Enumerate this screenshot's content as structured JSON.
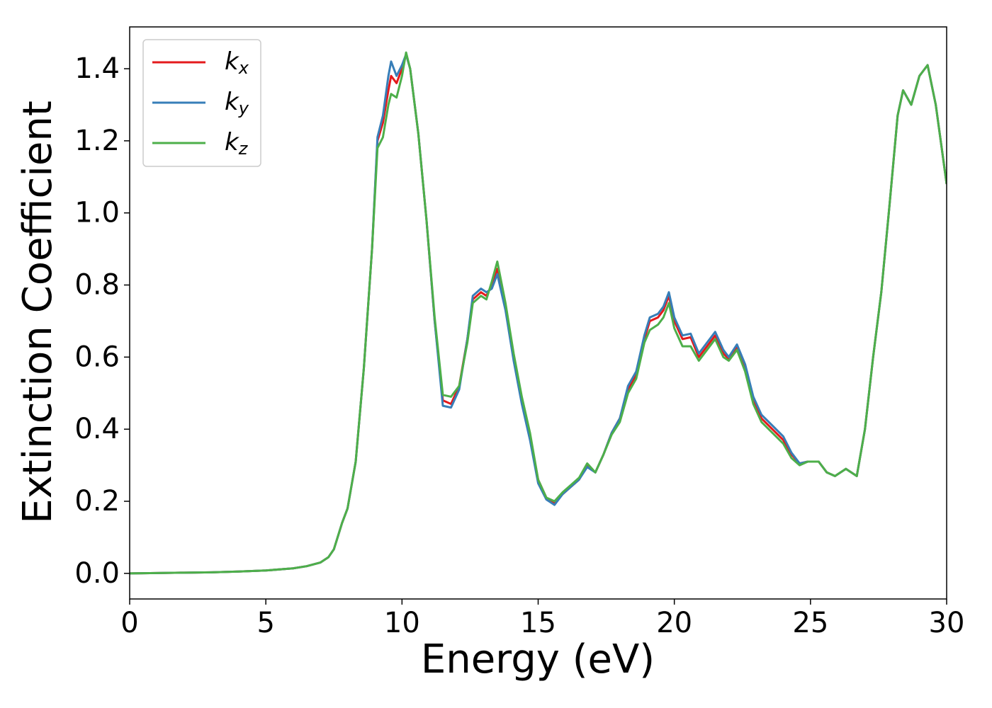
{
  "chart_data": {
    "type": "line",
    "xlabel": "Energy (eV)",
    "ylabel": "Extinction Coefficient",
    "x": [
      0,
      1,
      2,
      3,
      4,
      5,
      6,
      6.5,
      7,
      7.3,
      7.5,
      7.8,
      8,
      8.3,
      8.6,
      8.9,
      9.1,
      9.3,
      9.5,
      9.6,
      9.8,
      10,
      10.15,
      10.3,
      10.6,
      10.9,
      11.2,
      11.5,
      11.8,
      12.1,
      12.4,
      12.6,
      12.9,
      13.1,
      13.3,
      13.5,
      13.8,
      14.1,
      14.4,
      14.7,
      15,
      15.3,
      15.6,
      15.9,
      16.2,
      16.5,
      16.8,
      17.1,
      17.4,
      17.7,
      18,
      18.3,
      18.6,
      18.9,
      19.1,
      19.4,
      19.6,
      19.8,
      20,
      20.3,
      20.6,
      20.9,
      21.2,
      21.5,
      21.8,
      22,
      22.3,
      22.6,
      22.9,
      23.2,
      23.6,
      24,
      24.3,
      24.6,
      24.9,
      25.3,
      25.6,
      25.9,
      26.3,
      26.7,
      27,
      27.3,
      27.6,
      27.9,
      28.2,
      28.4,
      28.7,
      29,
      29.3,
      29.6,
      30
    ],
    "series": [
      {
        "name": "kx",
        "color": "#e41a1c",
        "values": [
          0,
          0.001,
          0.002,
          0.003,
          0.005,
          0.008,
          0.014,
          0.02,
          0.03,
          0.045,
          0.067,
          0.14,
          0.18,
          0.31,
          0.57,
          0.9,
          1.2,
          1.25,
          1.34,
          1.38,
          1.36,
          1.4,
          1.44,
          1.4,
          1.22,
          0.98,
          0.7,
          0.48,
          0.47,
          0.52,
          0.65,
          0.76,
          0.78,
          0.77,
          0.8,
          0.845,
          0.74,
          0.6,
          0.48,
          0.38,
          0.26,
          0.21,
          0.195,
          0.22,
          0.24,
          0.26,
          0.3,
          0.28,
          0.33,
          0.39,
          0.43,
          0.51,
          0.55,
          0.65,
          0.7,
          0.71,
          0.73,
          0.77,
          0.7,
          0.65,
          0.655,
          0.6,
          0.63,
          0.66,
          0.61,
          0.595,
          0.63,
          0.57,
          0.48,
          0.43,
          0.4,
          0.37,
          0.33,
          0.305,
          0.31,
          0.31,
          0.28,
          0.27,
          0.29,
          0.27,
          0.4,
          0.6,
          0.78,
          1.02,
          1.27,
          1.34,
          1.3,
          1.38,
          1.41,
          1.3,
          1.08
        ]
      },
      {
        "name": "ky",
        "color": "#377eb8",
        "values": [
          0,
          0.001,
          0.002,
          0.003,
          0.005,
          0.008,
          0.014,
          0.02,
          0.03,
          0.045,
          0.067,
          0.14,
          0.18,
          0.31,
          0.57,
          0.9,
          1.21,
          1.27,
          1.38,
          1.42,
          1.38,
          1.41,
          1.44,
          1.4,
          1.22,
          0.98,
          0.7,
          0.465,
          0.46,
          0.51,
          0.65,
          0.77,
          0.79,
          0.78,
          0.79,
          0.83,
          0.73,
          0.59,
          0.47,
          0.37,
          0.25,
          0.205,
          0.19,
          0.22,
          0.24,
          0.26,
          0.295,
          0.28,
          0.33,
          0.39,
          0.43,
          0.52,
          0.56,
          0.66,
          0.71,
          0.72,
          0.74,
          0.78,
          0.71,
          0.66,
          0.665,
          0.61,
          0.64,
          0.67,
          0.62,
          0.6,
          0.635,
          0.58,
          0.49,
          0.44,
          0.41,
          0.38,
          0.335,
          0.305,
          0.31,
          0.31,
          0.28,
          0.27,
          0.29,
          0.27,
          0.4,
          0.6,
          0.78,
          1.02,
          1.27,
          1.34,
          1.3,
          1.38,
          1.41,
          1.3,
          1.08
        ]
      },
      {
        "name": "kz",
        "color": "#4daf4a",
        "values": [
          0,
          0.001,
          0.002,
          0.003,
          0.005,
          0.008,
          0.014,
          0.02,
          0.03,
          0.045,
          0.067,
          0.14,
          0.18,
          0.31,
          0.57,
          0.9,
          1.18,
          1.21,
          1.3,
          1.33,
          1.32,
          1.38,
          1.445,
          1.4,
          1.22,
          0.98,
          0.71,
          0.495,
          0.49,
          0.52,
          0.64,
          0.75,
          0.77,
          0.76,
          0.81,
          0.865,
          0.75,
          0.61,
          0.49,
          0.39,
          0.26,
          0.21,
          0.2,
          0.225,
          0.245,
          0.265,
          0.305,
          0.28,
          0.33,
          0.385,
          0.42,
          0.5,
          0.54,
          0.64,
          0.675,
          0.69,
          0.71,
          0.75,
          0.68,
          0.63,
          0.63,
          0.59,
          0.62,
          0.65,
          0.6,
          0.59,
          0.62,
          0.56,
          0.47,
          0.42,
          0.39,
          0.36,
          0.32,
          0.3,
          0.31,
          0.31,
          0.28,
          0.27,
          0.29,
          0.27,
          0.4,
          0.6,
          0.78,
          1.02,
          1.27,
          1.34,
          1.3,
          1.38,
          1.41,
          1.3,
          1.08
        ]
      }
    ],
    "xlim": [
      0,
      30
    ],
    "xticks": [
      0,
      5,
      10,
      15,
      20,
      25,
      30
    ],
    "ylim": [
      -0.071,
      1.516
    ],
    "yticks": [
      {
        "value": 0,
        "label": "0.0"
      },
      0.2,
      0.4,
      0.6,
      0.8,
      {
        "value": 1,
        "label": "1.0"
      },
      1.2,
      1.4
    ],
    "grid": false,
    "legend": "upper left"
  }
}
